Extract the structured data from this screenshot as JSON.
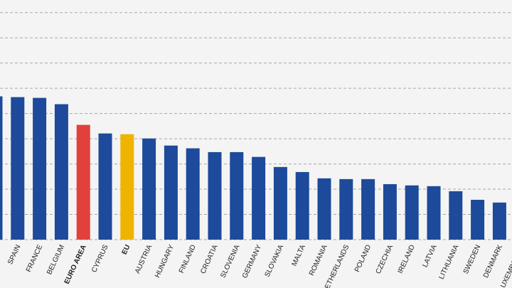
{
  "chart_data": {
    "type": "bar",
    "categories": [
      null,
      "SPAIN",
      "FRANCE",
      "BELGIUM",
      "EURO AREA",
      "CYPRUS",
      "EU",
      "AUSTRIA",
      "HUNGARY",
      "FINLAND",
      "CROATIA",
      "SLOVENIA",
      "GERMANY",
      "SLOVAKIA",
      "MALTA",
      "ROMANIA",
      "NETHERLANDS",
      "POLAND",
      "CZECHIA",
      "IRELAND",
      "LATVIA",
      "LITHUANIA",
      "SWEDEN",
      "DENMARK",
      "LUXEMBOURG"
    ],
    "values": [
      5.68,
      5.65,
      5.62,
      5.37,
      4.55,
      4.21,
      4.18,
      4.01,
      3.73,
      3.62,
      3.47,
      3.47,
      3.28,
      2.88,
      2.68,
      2.43,
      2.4,
      2.4,
      2.2,
      2.15,
      2.12,
      1.92,
      1.58,
      1.47,
      null
    ],
    "color": "#1d4a9a",
    "colors": [
      "#1d4a9a",
      "#1d4a9a",
      "#1d4a9a",
      "#1d4a9a",
      "#e1403b",
      "#1d4a9a",
      "#efb400",
      "#1d4a9a",
      "#1d4a9a",
      "#1d4a9a",
      "#1d4a9a",
      "#1d4a9a",
      "#1d4a9a",
      "#1d4a9a",
      "#1d4a9a",
      "#1d4a9a",
      "#1d4a9a",
      "#1d4a9a",
      "#1d4a9a",
      "#1d4a9a",
      "#1d4a9a",
      "#1d4a9a",
      "#1d4a9a",
      "#1d4a9a",
      "#1d4a9a"
    ],
    "ylim": [
      0,
      9.5
    ],
    "yticks": [
      0,
      1,
      2,
      3,
      4,
      5,
      6,
      7,
      8,
      9
    ],
    "grid": true
  }
}
